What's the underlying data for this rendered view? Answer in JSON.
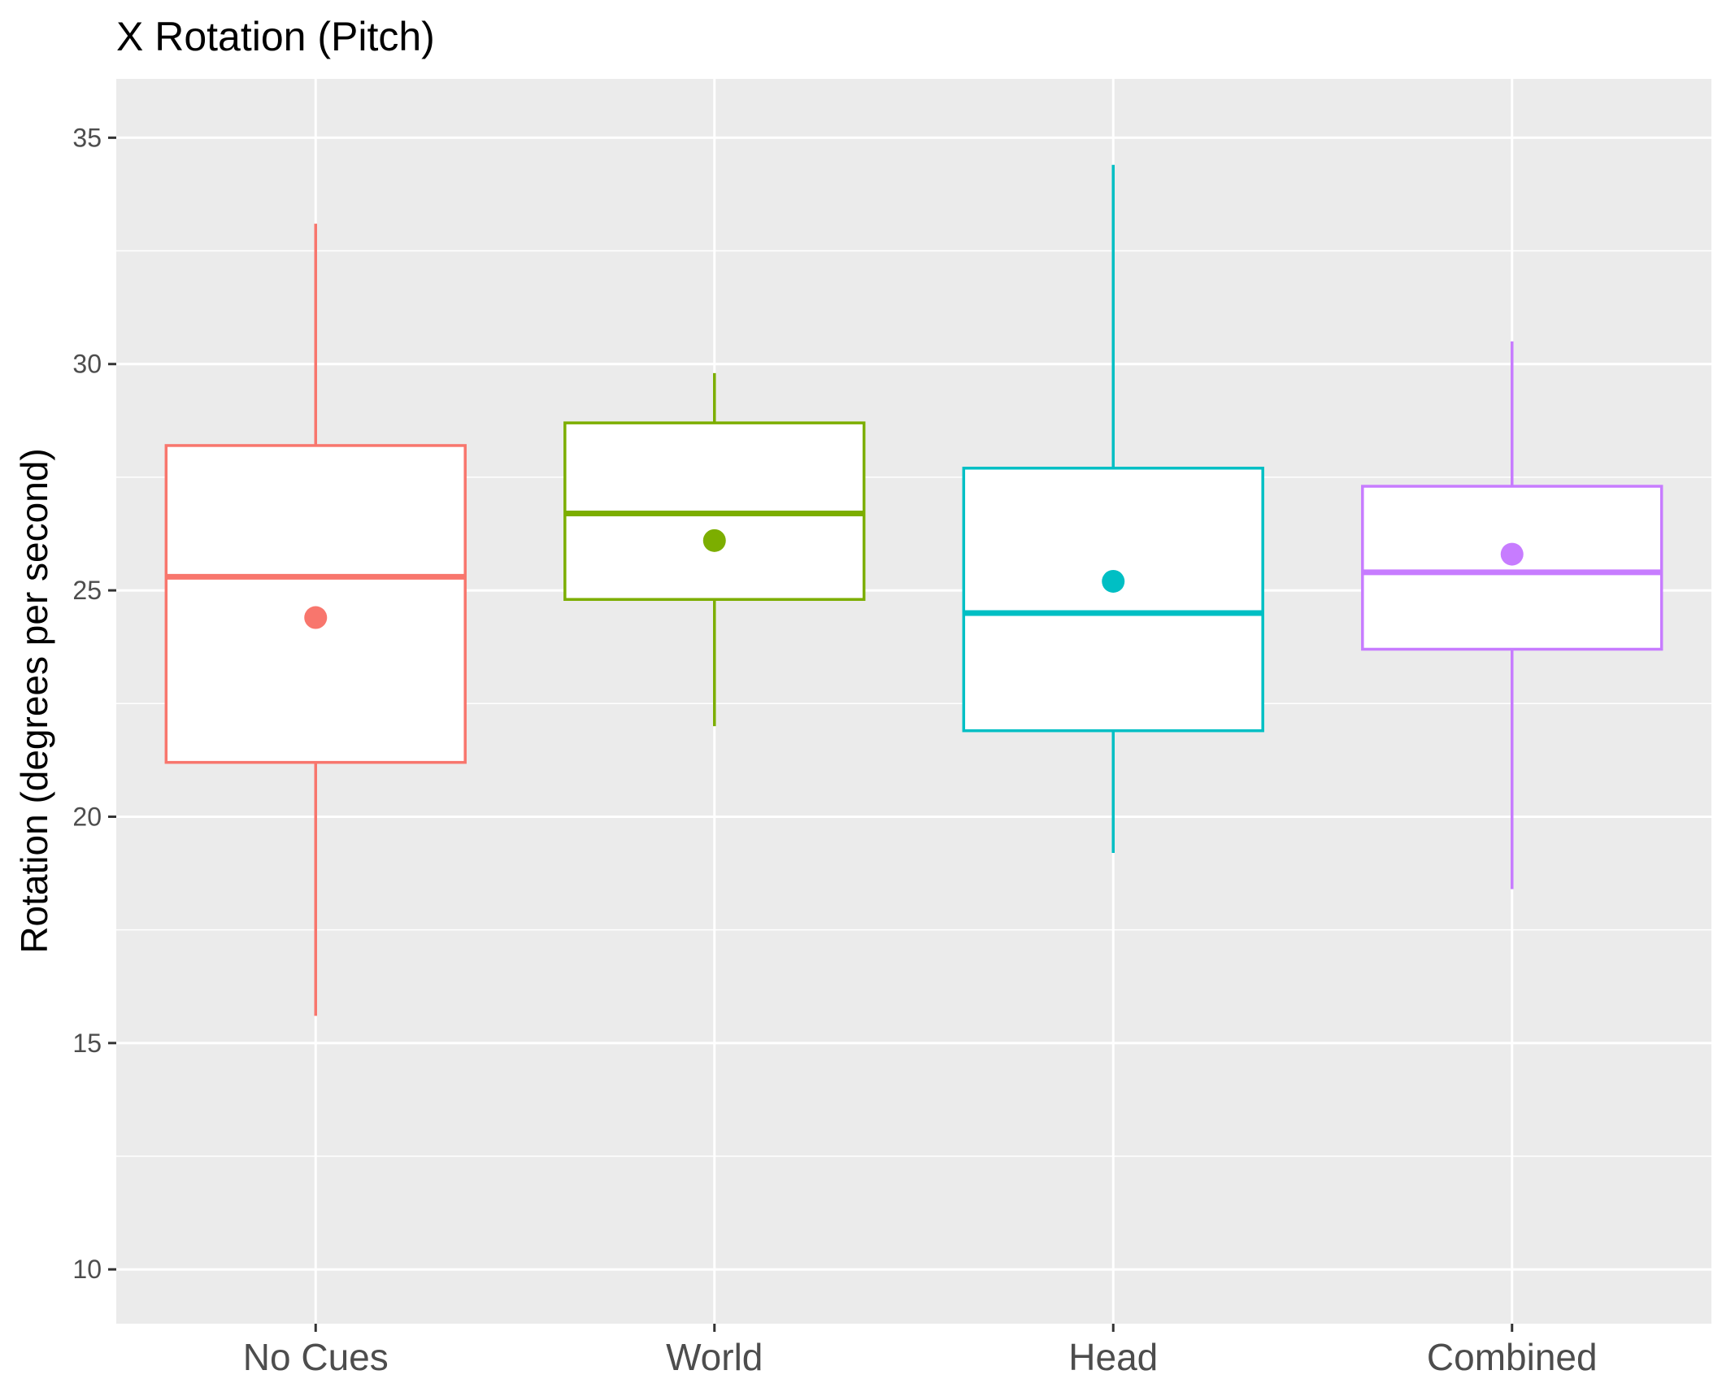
{
  "chart_data": {
    "type": "boxplot",
    "title": "X Rotation (Pitch)",
    "xlabel": "",
    "ylabel": "Rotation (degrees per second)",
    "ylim": [
      8.8,
      36.3
    ],
    "yticks": [
      10,
      15,
      20,
      25,
      30,
      35
    ],
    "grid": true,
    "legend": "none",
    "categories": [
      "No Cues",
      "World",
      "Head",
      "Combined"
    ],
    "boxes": [
      {
        "category": "No Cues",
        "color": "#F8766D",
        "whisker_low": 15.6,
        "q1": 21.2,
        "median": 25.3,
        "q3": 28.2,
        "whisker_high": 33.1,
        "mean": 24.4
      },
      {
        "category": "World",
        "color": "#7CAE00",
        "whisker_low": 22.0,
        "q1": 24.8,
        "median": 26.7,
        "q3": 28.7,
        "whisker_high": 29.8,
        "mean": 26.1
      },
      {
        "category": "Head",
        "color": "#00BFC4",
        "whisker_low": 19.2,
        "q1": 21.9,
        "median": 24.5,
        "q3": 27.7,
        "whisker_high": 34.4,
        "mean": 25.2
      },
      {
        "category": "Combined",
        "color": "#C77CFF",
        "whisker_low": 18.4,
        "q1": 23.7,
        "median": 25.4,
        "q3": 27.3,
        "whisker_high": 30.5,
        "mean": 25.8
      }
    ]
  }
}
